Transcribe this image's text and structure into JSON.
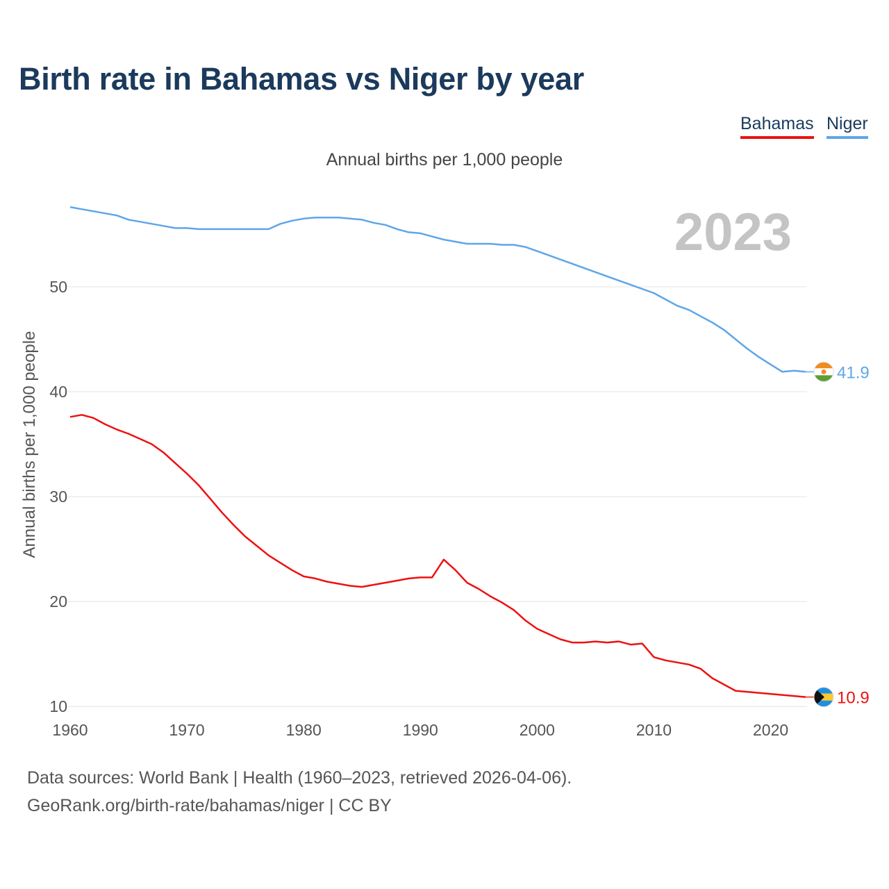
{
  "chart_data": {
    "type": "line",
    "title": "Birth rate in Bahamas vs Niger by year",
    "subtitle": "Annual births per 1,000 people",
    "ylabel": "Annual births per 1,000 people",
    "xlabel": "",
    "year_label": "2023",
    "xlim": [
      1960,
      2023
    ],
    "ylim": [
      7.5,
      59
    ],
    "x_ticks": [
      1960,
      1970,
      1980,
      1990,
      2000,
      2010,
      2020
    ],
    "y_ticks": [
      10,
      20,
      30,
      40,
      50
    ],
    "legend_position": "top-right",
    "x": [
      1960,
      1961,
      1962,
      1963,
      1964,
      1965,
      1966,
      1967,
      1968,
      1969,
      1970,
      1971,
      1972,
      1973,
      1974,
      1975,
      1976,
      1977,
      1978,
      1979,
      1980,
      1981,
      1982,
      1983,
      1984,
      1985,
      1986,
      1987,
      1988,
      1989,
      1990,
      1991,
      1992,
      1993,
      1994,
      1995,
      1996,
      1997,
      1998,
      1999,
      2000,
      2001,
      2002,
      2003,
      2004,
      2005,
      2006,
      2007,
      2008,
      2009,
      2010,
      2011,
      2012,
      2013,
      2014,
      2015,
      2016,
      2017,
      2018,
      2019,
      2020,
      2021,
      2022,
      2023
    ],
    "series": [
      {
        "name": "Bahamas",
        "color": "#ee1111",
        "flag": "bahamas-flag",
        "end_label": "10.9",
        "values": [
          37.6,
          37.8,
          37.5,
          36.9,
          36.4,
          36.0,
          35.5,
          35.0,
          34.2,
          33.2,
          32.2,
          31.1,
          29.8,
          28.5,
          27.3,
          26.2,
          25.3,
          24.4,
          23.7,
          23.0,
          22.4,
          22.2,
          21.9,
          21.7,
          21.5,
          21.4,
          21.6,
          21.8,
          22.0,
          22.2,
          22.3,
          22.3,
          24.0,
          23.0,
          21.8,
          21.2,
          20.5,
          19.9,
          19.2,
          18.2,
          17.4,
          16.9,
          16.4,
          16.1,
          16.1,
          16.2,
          16.1,
          16.2,
          15.9,
          16.0,
          14.7,
          14.4,
          14.2,
          14.0,
          13.6,
          12.7,
          12.1,
          11.5,
          11.4,
          11.3,
          11.2,
          11.1,
          11.0,
          10.9
        ]
      },
      {
        "name": "Niger",
        "color": "#5ea6e8",
        "flag": "niger-flag",
        "end_label": "41.9",
        "values": [
          57.6,
          57.4,
          57.2,
          57.0,
          56.8,
          56.4,
          56.2,
          56.0,
          55.8,
          55.6,
          55.6,
          55.5,
          55.5,
          55.5,
          55.5,
          55.5,
          55.5,
          55.5,
          56.0,
          56.3,
          56.5,
          56.6,
          56.6,
          56.6,
          56.5,
          56.4,
          56.1,
          55.9,
          55.5,
          55.2,
          55.1,
          54.8,
          54.5,
          54.3,
          54.1,
          54.1,
          54.1,
          54.0,
          54.0,
          53.8,
          53.4,
          53.0,
          52.6,
          52.2,
          51.8,
          51.4,
          51.0,
          50.6,
          50.2,
          49.8,
          49.4,
          48.8,
          48.2,
          47.8,
          47.2,
          46.6,
          45.9,
          45.0,
          44.1,
          43.3,
          42.6,
          41.9,
          42.0,
          41.9
        ]
      }
    ]
  },
  "footer": {
    "source_line": "Data sources: World Bank | Health (1960–2023, retrieved 2026-04-06).",
    "credit_line": "GeoRank.org/birth-rate/bahamas/niger | CC BY"
  }
}
